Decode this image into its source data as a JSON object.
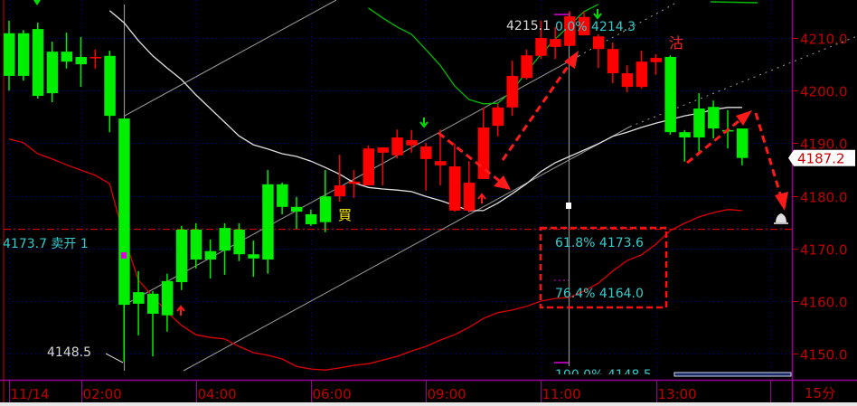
{
  "colors": {
    "up": "#ff0000",
    "down": "#00ee00",
    "background": "#000000",
    "axis": "#c00000",
    "grid": "#0000aa",
    "frame": "#990099",
    "ma1": "#e0e0e0",
    "ma2": "#dd0000",
    "ma3": "#00bb00",
    "fib_text": "#33cccc"
  },
  "chart_data": {
    "type": "candlestick",
    "timeframe_label": "15分",
    "x_tick_labels": [
      "11/14",
      "02:00",
      "04:00",
      "06:00",
      "09:00",
      "11:00",
      "13:00"
    ],
    "x_tick_candle_index": [
      0,
      5,
      13,
      21,
      29,
      37,
      45
    ],
    "y_ticks": [
      4210.0,
      4200.0,
      4190.0,
      4180.0,
      4170.0,
      4160.0,
      4150.0
    ],
    "y_tick_labels": [
      "4210.0",
      "4200.0",
      "4190.0",
      "4180.0",
      "4170.0",
      "4160.0",
      "4150.0"
    ],
    "ylim": [
      4145.5,
      4217.2
    ],
    "grid": true,
    "candles": [
      {
        "o": 4210.9,
        "h": 4213.3,
        "l": 4200.0,
        "c": 4202.8
      },
      {
        "o": 4210.9,
        "h": 4211.5,
        "l": 4201.9,
        "c": 4202.8
      },
      {
        "o": 4211.7,
        "h": 4212.9,
        "l": 4198.5,
        "c": 4199.0
      },
      {
        "o": 4207.4,
        "h": 4209.3,
        "l": 4197.8,
        "c": 4199.5
      },
      {
        "o": 4207.4,
        "h": 4211.0,
        "l": 4204.2,
        "c": 4205.5
      },
      {
        "o": 4206.4,
        "h": 4210.2,
        "l": 4200.7,
        "c": 4205.0
      },
      {
        "o": 4206.4,
        "h": 4207.8,
        "l": 4204.2,
        "c": 4206.4
      },
      {
        "o": 4206.6,
        "h": 4207.6,
        "l": 4192.1,
        "c": 4195.2
      },
      {
        "o": 4194.7,
        "h": 4194.7,
        "l": 4148.5,
        "c": 4159.3
      },
      {
        "o": 4161.7,
        "h": 4165.7,
        "l": 4153.5,
        "c": 4159.5
      },
      {
        "o": 4161.4,
        "h": 4161.9,
        "l": 4149.5,
        "c": 4157.6
      },
      {
        "o": 4163.8,
        "h": 4165.2,
        "l": 4154.2,
        "c": 4157.3
      },
      {
        "o": 4173.6,
        "h": 4174.3,
        "l": 4162.1,
        "c": 4163.6
      },
      {
        "o": 4173.6,
        "h": 4174.8,
        "l": 4166.2,
        "c": 4167.9
      },
      {
        "o": 4169.5,
        "h": 4171.7,
        "l": 4164.3,
        "c": 4167.9
      },
      {
        "o": 4173.9,
        "h": 4174.8,
        "l": 4165.0,
        "c": 4169.6
      },
      {
        "o": 4173.6,
        "h": 4174.8,
        "l": 4167.6,
        "c": 4168.9
      },
      {
        "o": 4168.9,
        "h": 4171.5,
        "l": 4164.6,
        "c": 4168.1
      },
      {
        "o": 4182.2,
        "h": 4184.9,
        "l": 4165.2,
        "c": 4167.9
      },
      {
        "o": 4182.2,
        "h": 4182.5,
        "l": 4176.5,
        "c": 4177.9
      },
      {
        "o": 4177.9,
        "h": 4179.8,
        "l": 4173.7,
        "c": 4177.0
      },
      {
        "o": 4176.5,
        "h": 4177.4,
        "l": 4174.3,
        "c": 4174.6
      },
      {
        "o": 4179.9,
        "h": 4184.9,
        "l": 4173.1,
        "c": 4175.0
      },
      {
        "o": 4179.9,
        "h": 4187.8,
        "l": 4178.9,
        "c": 4182.0
      },
      {
        "o": 4182.3,
        "h": 4184.9,
        "l": 4179.6,
        "c": 4182.7
      },
      {
        "o": 4182.0,
        "h": 4189.6,
        "l": 4182.0,
        "c": 4189.0
      },
      {
        "o": 4188.2,
        "h": 4189.2,
        "l": 4182.0,
        "c": 4189.2
      },
      {
        "o": 4187.7,
        "h": 4192.6,
        "l": 4187.1,
        "c": 4191.1
      },
      {
        "o": 4189.6,
        "h": 4192.5,
        "l": 4188.2,
        "c": 4190.6
      },
      {
        "o": 4187.0,
        "h": 4190.1,
        "l": 4181.0,
        "c": 4189.4
      },
      {
        "o": 4185.8,
        "h": 4192.6,
        "l": 4182.0,
        "c": 4186.6
      },
      {
        "o": 4177.2,
        "h": 4189.9,
        "l": 4177.0,
        "c": 4185.6
      },
      {
        "o": 4177.2,
        "h": 4186.6,
        "l": 4176.8,
        "c": 4182.5
      },
      {
        "o": 4183.2,
        "h": 4196.8,
        "l": 4183.2,
        "c": 4193.0
      },
      {
        "o": 4193.3,
        "h": 4197.5,
        "l": 4191.3,
        "c": 4196.8
      },
      {
        "o": 4196.8,
        "h": 4205.7,
        "l": 4195.2,
        "c": 4202.8
      },
      {
        "o": 4202.4,
        "h": 4207.8,
        "l": 4202.1,
        "c": 4206.7
      },
      {
        "o": 4206.6,
        "h": 4213.3,
        "l": 4206.0,
        "c": 4210.0
      },
      {
        "o": 4208.3,
        "h": 4212.1,
        "l": 4206.0,
        "c": 4209.8
      },
      {
        "o": 4208.5,
        "h": 4215.1,
        "l": 4208.5,
        "c": 4214.1
      },
      {
        "o": 4210.5,
        "h": 4215.0,
        "l": 4210.5,
        "c": 4214.0
      },
      {
        "o": 4207.9,
        "h": 4210.7,
        "l": 4204.3,
        "c": 4210.3
      },
      {
        "o": 4203.3,
        "h": 4209.1,
        "l": 4201.4,
        "c": 4207.9
      },
      {
        "o": 4200.7,
        "h": 4204.8,
        "l": 4199.7,
        "c": 4203.3
      },
      {
        "o": 4200.7,
        "h": 4207.6,
        "l": 4200.4,
        "c": 4205.5
      },
      {
        "o": 4205.4,
        "h": 4206.9,
        "l": 4203.0,
        "c": 4206.2
      },
      {
        "o": 4206.4,
        "h": 4206.7,
        "l": 4191.6,
        "c": 4192.1
      },
      {
        "o": 4192.1,
        "h": 4192.5,
        "l": 4186.5,
        "c": 4191.1
      },
      {
        "o": 4196.6,
        "h": 4199.5,
        "l": 4188.4,
        "c": 4191.1
      },
      {
        "o": 4196.9,
        "h": 4198.1,
        "l": 4190.9,
        "c": 4192.8
      },
      {
        "o": 4192.5,
        "h": 4196.3,
        "l": 4189.0,
        "c": 4192.4
      },
      {
        "o": 4192.8,
        "h": 4192.8,
        "l": 4185.8,
        "c": 4187.2
      }
    ],
    "moving_averages": [
      {
        "color": "#e0e0e0",
        "start_index": 7,
        "values": [
          4215.2,
          4212.9,
          4209.5,
          4206.6,
          4204.3,
          4202.1,
          4199.2,
          4196.6,
          4194.0,
          4191.4,
          4189.7,
          4188.9,
          4188.0,
          4187.5,
          4186.6,
          4185.4,
          4184.1,
          4182.5,
          4181.6,
          4181.3,
          4181.1,
          4180.8,
          4179.9,
          4179.1,
          4178.2,
          4177.2,
          4177.2,
          4178.6,
          4180.4,
          4182.3,
          4184.6,
          4186.3,
          4187.5,
          4188.7,
          4189.9,
          4191.3,
          4192.1,
          4193.0,
          4193.8,
          4194.5,
          4195.2,
          4195.7,
          4196.4,
          4196.8,
          4196.8
        ]
      },
      {
        "color": "#dd0000",
        "start_index": 0,
        "values": [
          4190.8,
          4190.1,
          4188.0,
          4187.0,
          4185.9,
          4184.9,
          4183.9,
          4182.3,
          4172.2,
          4164.0,
          4160.9,
          4157.9,
          4155.4,
          4153.6,
          4153.1,
          4152.8,
          4151.4,
          4150.2,
          4149.7,
          4149.0,
          4147.6,
          4147.1,
          4146.9,
          4147.3,
          4147.8,
          4148.1,
          4148.8,
          4149.5,
          4150.5,
          4151.4,
          4152.6,
          4153.6,
          4155.0,
          4156.7,
          4157.8,
          4158.3,
          4159.0,
          4160.0,
          4160.5,
          4160.7,
          4161.9,
          4163.4,
          4165.7,
          4167.7,
          4168.8,
          4170.8,
          4173.4,
          4174.8,
          4176.0,
          4176.8,
          4177.4,
          4177.2
        ]
      },
      {
        "color": "#00bb00",
        "start_index": 25,
        "values": [
          4215.7,
          4213.8,
          4212.1,
          4210.7,
          4207.8,
          4204.8,
          4200.9,
          4198.3,
          4197.5,
          4197.6,
          4200.0,
          4203.5,
          4206.9,
          4209.8,
          4212.4,
          4215.0,
          4216.4
        ]
      }
    ],
    "order_line": {
      "price": 4173.7,
      "label": "4173.7 卖开 1"
    },
    "last_price": "4187.2",
    "low_label": "4148.5",
    "high_label": "4215.1",
    "fibonacci": [
      {
        "label": "0.0% 4214.3"
      },
      {
        "label": "61.8% 4173.6"
      },
      {
        "label": "76.4% 4164.0"
      },
      {
        "label": "100.0% 4148.5"
      }
    ],
    "signals": {
      "buy": "買",
      "sell": "沽"
    }
  }
}
